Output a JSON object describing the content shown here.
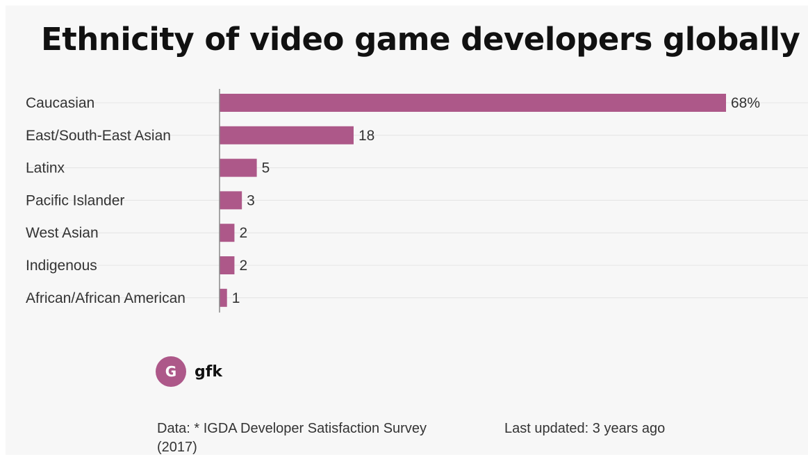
{
  "title": "Ethnicity of video game developers globally",
  "accent_color": "#ad5889",
  "chart_data": {
    "type": "bar",
    "orientation": "horizontal",
    "title": "Ethnicity of video game developers globally",
    "categories": [
      "Caucasian",
      "East/South-East Asian",
      "Latinx",
      "Pacific Islander",
      "West Asian",
      "Indigenous",
      "African/African American"
    ],
    "values": [
      68,
      18,
      5,
      3,
      2,
      2,
      1
    ],
    "value_labels": [
      "68%",
      "18",
      "5",
      "3",
      "2",
      "2",
      "1"
    ],
    "unit": "%",
    "xlabel": "",
    "ylabel": "",
    "xlim": [
      0,
      68
    ],
    "grid": true,
    "legend": "none",
    "bar_color": "#ad5889"
  },
  "logo": {
    "icon": "gfk-logo-icon",
    "glyph": "G",
    "name": "gfk"
  },
  "footer": {
    "source": "Data: * IGDA Developer Satisfaction Survey (2017)",
    "updated": "Last updated: 3 years ago"
  }
}
